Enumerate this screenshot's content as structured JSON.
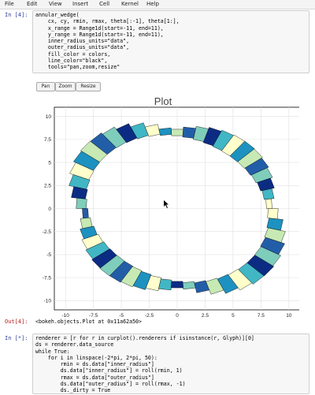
{
  "menu": [
    "File",
    "Edit",
    "View",
    "Insert",
    "Cell",
    "Kernel",
    "Help"
  ],
  "cell1": {
    "prompt": "In [4]:",
    "lines": [
      "annular_wedge(",
      "    cx, cy, rmin, rmax, theta[:-1], theta[1:],",
      "    x_range = Range1d(start=-11, end=11),",
      "    y_range = Range1d(start=-11, end=11),",
      "    inner_radius_units=\"data\",",
      "    outer_radius_units=\"data\",",
      "    fill_color = colors,",
      "    line_color=\"black\",",
      "    tools=\"pan,zoom,resize\""
    ]
  },
  "toolbar": {
    "pan_label": "Pan",
    "zoom_label": "Zoom",
    "resize_label": "Resize"
  },
  "chart_data": {
    "type": "annular_wedge",
    "title": "Plot",
    "xlim": [
      -11,
      11
    ],
    "ylim": [
      -11,
      11
    ],
    "x_ticks": [
      -10,
      -7.5,
      -5,
      -2.5,
      0,
      2.5,
      5,
      7.5,
      10
    ],
    "y_ticks": [
      10,
      7.5,
      5,
      2.5,
      0,
      -2.5,
      -5,
      -7.5,
      -10
    ],
    "grid": true,
    "colors": [
      "#ffffcc",
      "#c7e9b4",
      "#7fcdbb",
      "#41b6c4",
      "#1d91c0",
      "#225ea8",
      "#0c2c84"
    ]
  },
  "output": {
    "prompt": "Out[4]:",
    "text": "<bokeh.objects.Plot at 0x11a62a50>"
  },
  "cell2": {
    "prompt": "In [*]:",
    "lines": [
      "renderer = [r for r in curplot().renderers if isinstance(r, Glyph)][0]",
      "ds = renderer.data_source",
      "while True:",
      "    for i in linspace(-2*pi, 2*pi, 50):",
      "        rmin = ds.data[\"inner_radius\"]",
      "        ds.data[\"inner_radius\"] = roll(rmin, 1)",
      "        rmax = ds.data[\"outer_radius\"]",
      "        ds.data[\"outer_radius\"] = roll(rmax, -1)",
      "        ds._dirty = True"
    ]
  }
}
